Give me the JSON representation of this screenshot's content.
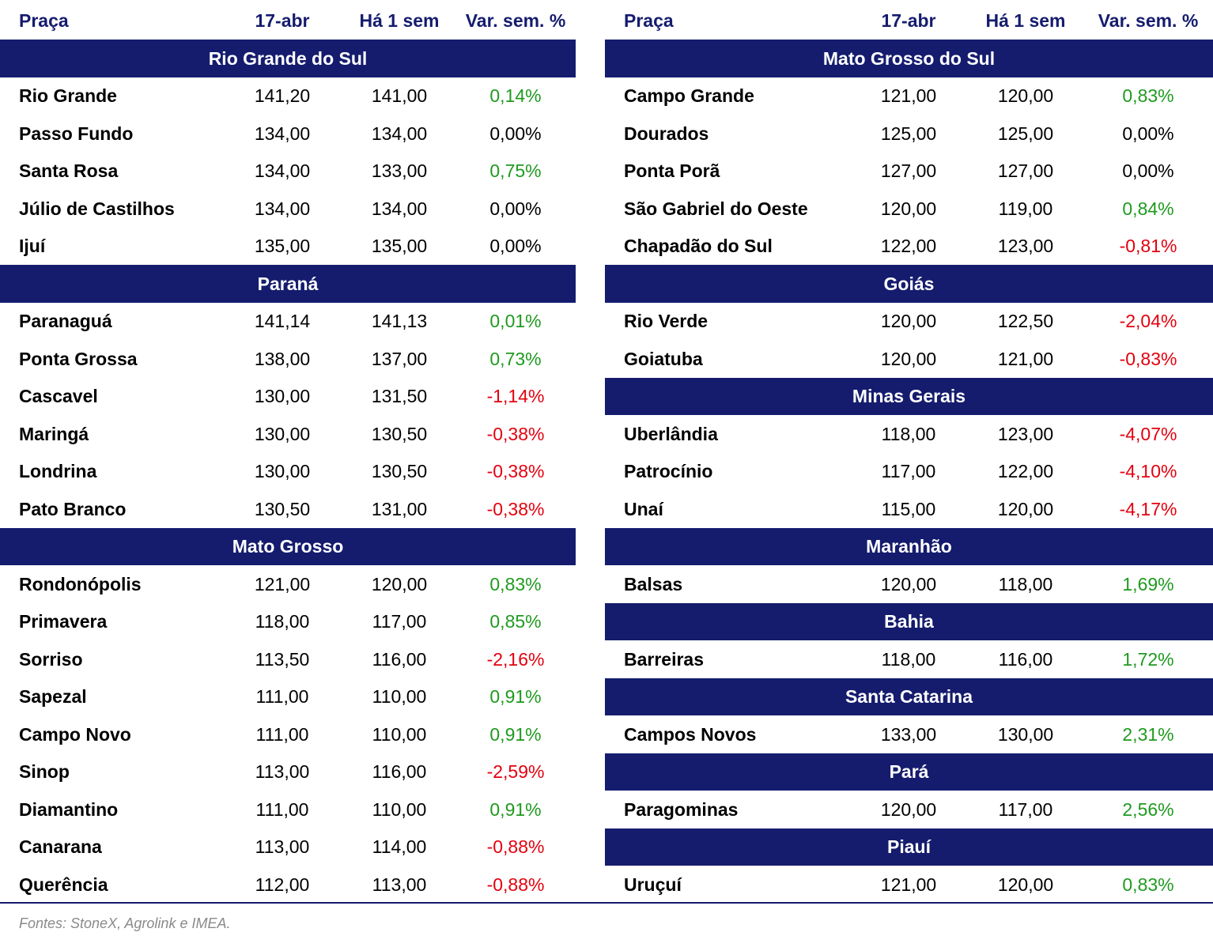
{
  "tables": [
    {
      "header": [
        "Praça",
        "17-abr",
        "Há 1 sem",
        "Var. sem. %"
      ],
      "sections": [
        {
          "title": "Rio Grande do Sul",
          "rows": [
            [
              "Rio Grande",
              "141,20",
              "141,00",
              "0,14%"
            ],
            [
              "Passo Fundo",
              "134,00",
              "134,00",
              "0,00%"
            ],
            [
              "Santa Rosa",
              "134,00",
              "133,00",
              "0,75%"
            ],
            [
              "Júlio de Castilhos",
              "134,00",
              "134,00",
              "0,00%"
            ],
            [
              "Ijuí",
              "135,00",
              "135,00",
              "0,00%"
            ]
          ]
        },
        {
          "title": "Paraná",
          "rows": [
            [
              "Paranaguá",
              "141,14",
              "141,13",
              "0,01%"
            ],
            [
              "Ponta Grossa",
              "138,00",
              "137,00",
              "0,73%"
            ],
            [
              "Cascavel",
              "130,00",
              "131,50",
              "-1,14%"
            ],
            [
              "Maringá",
              "130,00",
              "130,50",
              "-0,38%"
            ],
            [
              "Londrina",
              "130,00",
              "130,50",
              "-0,38%"
            ],
            [
              "Pato Branco",
              "130,50",
              "131,00",
              "-0,38%"
            ]
          ]
        },
        {
          "title": "Mato Grosso",
          "rows": [
            [
              "Rondonópolis",
              "121,00",
              "120,00",
              "0,83%"
            ],
            [
              "Primavera",
              "118,00",
              "117,00",
              "0,85%"
            ],
            [
              "Sorriso",
              "113,50",
              "116,00",
              "-2,16%"
            ],
            [
              "Sapezal",
              "111,00",
              "110,00",
              "0,91%"
            ],
            [
              "Campo Novo",
              "111,00",
              "110,00",
              "0,91%"
            ],
            [
              "Sinop",
              "113,00",
              "116,00",
              "-2,59%"
            ],
            [
              "Diamantino",
              "111,00",
              "110,00",
              "0,91%"
            ],
            [
              "Canarana",
              "113,00",
              "114,00",
              "-0,88%"
            ],
            [
              "Querência",
              "112,00",
              "113,00",
              "-0,88%"
            ]
          ]
        }
      ]
    },
    {
      "header": [
        "Praça",
        "17-abr",
        "Há 1 sem",
        "Var. sem. %"
      ],
      "sections": [
        {
          "title": "Mato Grosso do Sul",
          "rows": [
            [
              "Campo Grande",
              "121,00",
              "120,00",
              "0,83%"
            ],
            [
              "Dourados",
              "125,00",
              "125,00",
              "0,00%"
            ],
            [
              "Ponta Porã",
              "127,00",
              "127,00",
              "0,00%"
            ],
            [
              "São Gabriel do Oeste",
              "120,00",
              "119,00",
              "0,84%"
            ],
            [
              "Chapadão do Sul",
              "122,00",
              "123,00",
              "-0,81%"
            ]
          ]
        },
        {
          "title": "Goiás",
          "rows": [
            [
              "Rio Verde",
              "120,00",
              "122,50",
              "-2,04%"
            ],
            [
              "Goiatuba",
              "120,00",
              "121,00",
              "-0,83%"
            ]
          ]
        },
        {
          "title": "Minas Gerais",
          "rows": [
            [
              "Uberlândia",
              "118,00",
              "123,00",
              "-4,07%"
            ],
            [
              "Patrocínio",
              "117,00",
              "122,00",
              "-4,10%"
            ],
            [
              "Unaí",
              "115,00",
              "120,00",
              "-4,17%"
            ]
          ]
        },
        {
          "title": "Maranhão",
          "rows": [
            [
              "Balsas",
              "120,00",
              "118,00",
              "1,69%"
            ]
          ]
        },
        {
          "title": "Bahia",
          "rows": [
            [
              "Barreiras",
              "118,00",
              "116,00",
              "1,72%"
            ]
          ]
        },
        {
          "title": "Santa Catarina",
          "rows": [
            [
              "Campos Novos",
              "133,00",
              "130,00",
              "2,31%"
            ]
          ]
        },
        {
          "title": "Pará",
          "rows": [
            [
              "Paragominas",
              "120,00",
              "117,00",
              "2,56%"
            ]
          ]
        },
        {
          "title": "Piauí",
          "rows": [
            [
              "Uruçuí",
              "121,00",
              "120,00",
              "0,83%"
            ]
          ]
        }
      ]
    }
  ],
  "footnote": "Fontes: StoneX, Agrolink e IMEA."
}
